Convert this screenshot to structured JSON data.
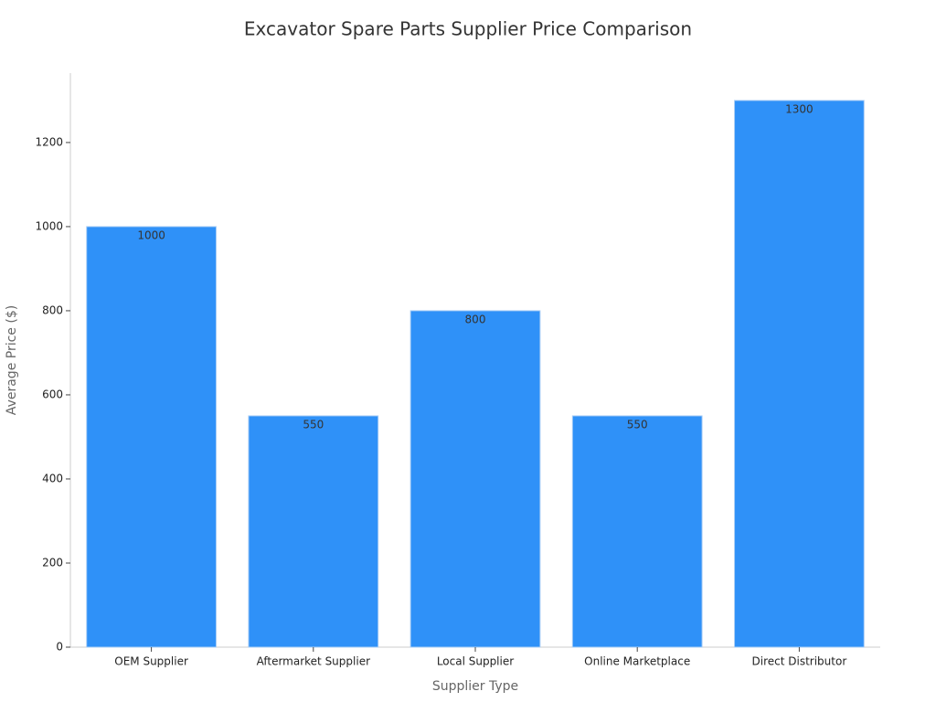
{
  "chart_data": {
    "type": "bar",
    "title": "Excavator Spare Parts Supplier Price Comparison",
    "x_label": "Supplier Type",
    "y_label": "Average Price ($)",
    "categories": [
      "OEM Supplier",
      "Aftermarket Supplier",
      "Local Supplier",
      "Online Marketplace",
      "Direct Distributor"
    ],
    "values": [
      1000,
      550,
      800,
      550,
      1300
    ],
    "color": "#2f91f8",
    "ylim": [
      0,
      1365
    ],
    "yticks": [
      0,
      200,
      400,
      600,
      800,
      1000,
      1200
    ],
    "grid": false
  }
}
